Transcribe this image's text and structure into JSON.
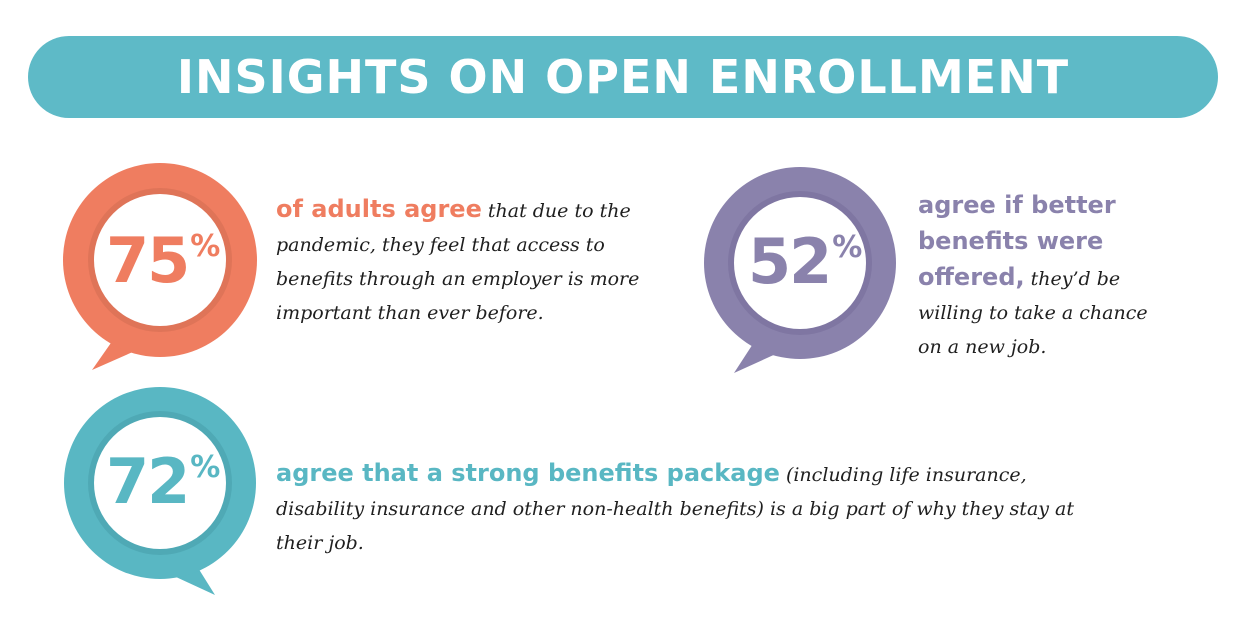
{
  "title": "INSIGHTS ON OPEN ENROLLMENT",
  "colors": {
    "banner": "#5ebac7",
    "coral": "#ef7d60",
    "purple": "#8a82ac",
    "teal": "#59b7c3"
  },
  "icons": [
    "speech-bubble-coral",
    "speech-bubble-purple",
    "speech-bubble-teal"
  ],
  "stats": [
    {
      "value": "75",
      "unit": "%",
      "highlight": "of adults agree",
      "text": " that due to the pandemic, they feel that access to benefits through an employer is more important than ever before."
    },
    {
      "value": "52",
      "unit": "%",
      "highlight": "agree if better benefits were offered,",
      "text": " they’d be willing to take a chance on a new job."
    },
    {
      "value": "72",
      "unit": "%",
      "highlight": "agree that a strong benefits package",
      "text": " (including life insurance, disability insurance and other non-health benefits) is a big part of why they stay at their job."
    }
  ]
}
